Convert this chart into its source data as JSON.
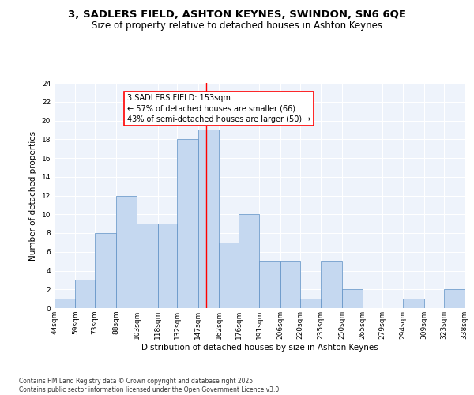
{
  "title_line1": "3, SADLERS FIELD, ASHTON KEYNES, SWINDON, SN6 6QE",
  "title_line2": "Size of property relative to detached houses in Ashton Keynes",
  "xlabel": "Distribution of detached houses by size in Ashton Keynes",
  "ylabel": "Number of detached properties",
  "bar_edges": [
    44,
    59,
    73,
    88,
    103,
    118,
    132,
    147,
    162,
    176,
    191,
    206,
    220,
    235,
    250,
    265,
    279,
    294,
    309,
    323,
    338
  ],
  "bar_heights": [
    1,
    3,
    8,
    12,
    9,
    9,
    18,
    19,
    7,
    10,
    5,
    5,
    1,
    5,
    2,
    0,
    0,
    1,
    0,
    2
  ],
  "bar_color": "#c5d8f0",
  "bar_edge_color": "#5b8ec4",
  "property_line_x": 153,
  "annotation_text": "3 SADLERS FIELD: 153sqm\n← 57% of detached houses are smaller (66)\n43% of semi-detached houses are larger (50) →",
  "annotation_box_color": "white",
  "annotation_box_edge_color": "red",
  "vline_color": "red",
  "ylim": [
    0,
    24
  ],
  "yticks": [
    0,
    2,
    4,
    6,
    8,
    10,
    12,
    14,
    16,
    18,
    20,
    22,
    24
  ],
  "tick_labels": [
    "44sqm",
    "59sqm",
    "73sqm",
    "88sqm",
    "103sqm",
    "118sqm",
    "132sqm",
    "147sqm",
    "162sqm",
    "176sqm",
    "191sqm",
    "206sqm",
    "220sqm",
    "235sqm",
    "250sqm",
    "265sqm",
    "279sqm",
    "294sqm",
    "309sqm",
    "323sqm",
    "338sqm"
  ],
  "background_color": "#eef3fb",
  "grid_color": "white",
  "footer_text": "Contains HM Land Registry data © Crown copyright and database right 2025.\nContains public sector information licensed under the Open Government Licence v3.0.",
  "title_fontsize": 9.5,
  "subtitle_fontsize": 8.5,
  "axis_label_fontsize": 7.5,
  "tick_fontsize": 6.5,
  "annotation_fontsize": 7.0,
  "footer_fontsize": 5.5
}
